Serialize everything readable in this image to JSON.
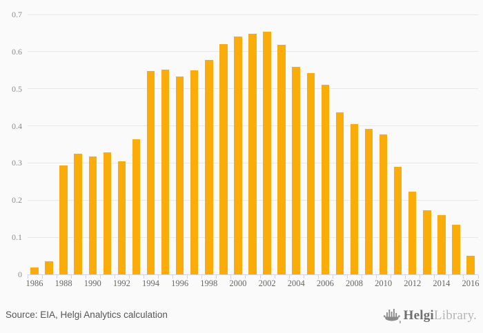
{
  "chart_data": {
    "type": "bar",
    "title": "",
    "xlabel": "",
    "ylabel": "",
    "categories": [
      "1986",
      "1987",
      "1988",
      "1989",
      "1990",
      "1991",
      "1992",
      "1993",
      "1994",
      "1995",
      "1996",
      "1997",
      "1998",
      "1999",
      "2000",
      "2001",
      "2002",
      "2003",
      "2004",
      "2005",
      "2006",
      "2007",
      "2008",
      "2009",
      "2010",
      "2011",
      "2012",
      "2013",
      "2014",
      "2015",
      "2016"
    ],
    "values": [
      0.018,
      0.035,
      0.294,
      0.325,
      0.318,
      0.328,
      0.304,
      0.364,
      0.548,
      0.552,
      0.533,
      0.55,
      0.578,
      0.621,
      0.641,
      0.648,
      0.654,
      0.619,
      0.558,
      0.543,
      0.511,
      0.436,
      0.404,
      0.391,
      0.376,
      0.289,
      0.222,
      0.173,
      0.16,
      0.133,
      0.05
    ],
    "ylim": [
      0,
      0.7
    ],
    "yticks": [
      0,
      0.1,
      0.2,
      0.3,
      0.4,
      0.5,
      0.6,
      0.7
    ],
    "ytick_labels": [
      "0",
      "0.1",
      "0.2",
      "0.3",
      "0.4",
      "0.5",
      "0.6",
      "0.7"
    ],
    "xtick_label_every": 2,
    "grid": true,
    "legend": false,
    "colors": {
      "bar": "#FAAC0A",
      "background": "#FAFAFA",
      "gridline": "#E8E8E8",
      "axis": "#CCD6EB",
      "y_label": "#8C8C8C",
      "x_label": "#666666"
    }
  },
  "footer": {
    "source": "Source: EIA, Helgi Analytics calculation",
    "logo_primary": "Helgi",
    "logo_secondary": "Library.",
    "logo_icon": "viking-ship-icon"
  }
}
